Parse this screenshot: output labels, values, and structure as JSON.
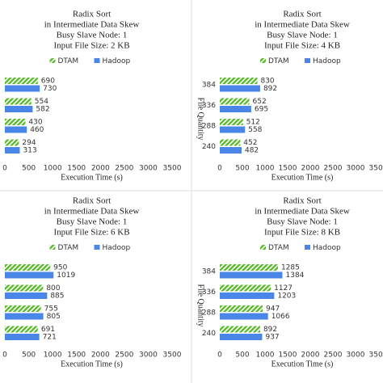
{
  "chart_data": [
    {
      "type": "bar",
      "title": [
        "Radix Sort",
        "in Intermediate Data Skew",
        "Busy Slave Node: 1",
        "Input File Size: 2 KB"
      ],
      "categories": [
        null,
        null,
        null,
        null
      ],
      "series": [
        {
          "name": "DTAM",
          "color": "#5cb82e",
          "values": [
            690,
            554,
            430,
            294
          ]
        },
        {
          "name": "Hadoop",
          "color": "#4a86e8",
          "values": [
            730,
            582,
            460,
            313
          ]
        }
      ],
      "xlabel": "Execution Time (s)",
      "xlim": [
        0,
        3500
      ],
      "xticks": [
        0,
        500,
        1000,
        1500,
        2000,
        2500,
        3000,
        3500
      ]
    },
    {
      "type": "bar",
      "title": [
        "Radix Sort",
        "in Intermediate Data Skew",
        "Busy Slave Node: 1",
        "Input File Size: 4 KB"
      ],
      "categories": [
        "384",
        "336",
        "288",
        "240"
      ],
      "ylabel": "File Quantity",
      "series": [
        {
          "name": "DTAM",
          "color": "#5cb82e",
          "values": [
            830,
            652,
            512,
            452
          ]
        },
        {
          "name": "Hadoop",
          "color": "#4a86e8",
          "values": [
            892,
            695,
            558,
            482
          ]
        }
      ],
      "xlabel": "Execution Time (s)",
      "xlim": [
        0,
        3500
      ],
      "xticks": [
        0,
        500,
        1000,
        1500,
        2000,
        2500,
        3000,
        3500
      ]
    },
    {
      "type": "bar",
      "title": [
        "Radix Sort",
        "in Intermediate Data Skew",
        "Busy Slave Node: 1",
        "Input File Size: 6 KB"
      ],
      "categories": [
        null,
        null,
        null,
        null
      ],
      "series": [
        {
          "name": "DTAM",
          "color": "#5cb82e",
          "values": [
            950,
            800,
            755,
            691
          ]
        },
        {
          "name": "Hadoop",
          "color": "#4a86e8",
          "values": [
            1019,
            885,
            805,
            721
          ]
        }
      ],
      "xlabel": "Execution Time (s)",
      "xlim": [
        0,
        3500
      ],
      "xticks": [
        0,
        500,
        1000,
        1500,
        2000,
        2500,
        3000,
        3500
      ]
    },
    {
      "type": "bar",
      "title": [
        "Radix Sort",
        "in Intermediate Data Skew",
        "Busy Slave Node: 1",
        "Input File Size: 8 KB"
      ],
      "categories": [
        "384",
        "336",
        "288",
        "240"
      ],
      "ylabel": "File Quantity",
      "series": [
        {
          "name": "DTAM",
          "color": "#5cb82e",
          "values": [
            1285,
            1127,
            947,
            892
          ]
        },
        {
          "name": "Hadoop",
          "color": "#4a86e8",
          "values": [
            1384,
            1203,
            1066,
            937
          ]
        }
      ],
      "xlabel": "Execution Time (s)",
      "xlim": [
        0,
        3500
      ],
      "xticks": [
        0,
        500,
        1000,
        1500,
        2000,
        2500,
        3000,
        3500
      ]
    }
  ]
}
